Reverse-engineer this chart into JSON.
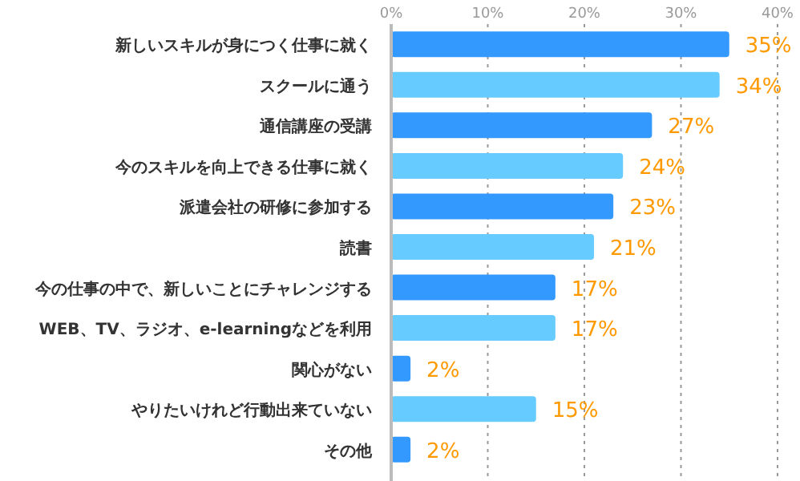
{
  "chart_data": {
    "type": "bar",
    "orientation": "horizontal",
    "categories": [
      "新しいスキルが身につく仕事に就く",
      "スクールに通う",
      "通信講座の受講",
      "今のスキルを向上できる仕事に就く",
      "派遣会社の研修に参加する",
      "読書",
      "今の仕事の中で、新しいことにチャレンジする",
      "WEB、TV、ラジオ、e-learningなどを利用",
      "関心がない",
      "やりたいけれど行動出来ていない",
      "その他"
    ],
    "values": [
      35,
      34,
      27,
      24,
      23,
      21,
      17,
      17,
      2,
      15,
      2
    ],
    "colors": [
      "#3399ff",
      "#66ccff",
      "#3399ff",
      "#66ccff",
      "#3399ff",
      "#66ccff",
      "#3399ff",
      "#66ccff",
      "#3399ff",
      "#66ccff",
      "#3399ff"
    ],
    "value_labels": [
      "35%",
      "34%",
      "27%",
      "24%",
      "23%",
      "21%",
      "17%",
      "17%",
      "2%",
      "15%",
      "2%"
    ],
    "xlim": [
      0,
      40
    ],
    "xticks": [
      {
        "value": 0,
        "label": "0%"
      },
      {
        "value": 10,
        "label": "10%"
      },
      {
        "value": 20,
        "label": "20%"
      },
      {
        "value": 30,
        "label": "30%"
      },
      {
        "value": 40,
        "label": "40%"
      }
    ],
    "grid": "x"
  }
}
